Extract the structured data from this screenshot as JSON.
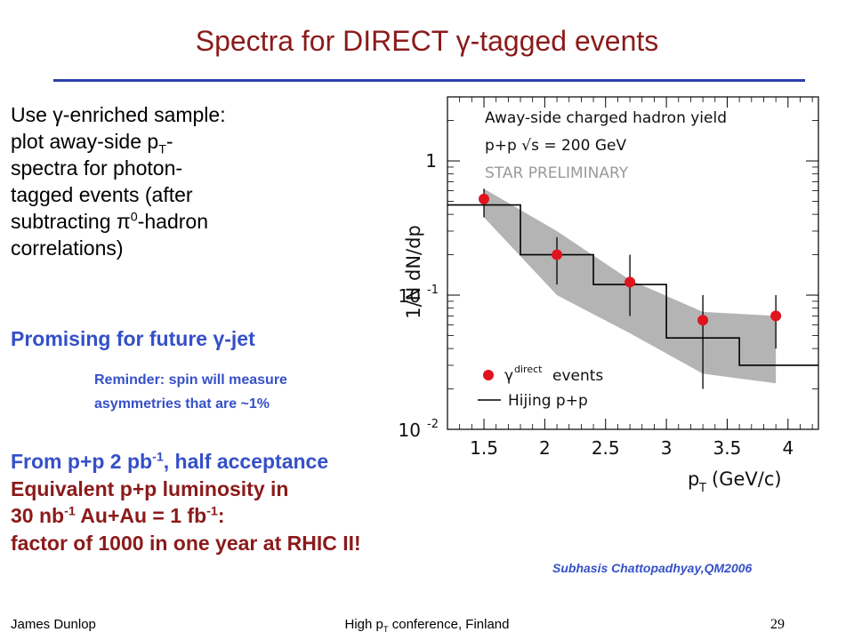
{
  "slide": {
    "title": "Spectra for DIRECT γ-tagged events",
    "intro": {
      "line1": "Use γ-enriched sample:",
      "line2a": "plot away-side p",
      "line2sub": "T",
      "line2b": "-",
      "line3": "spectra for photon-",
      "line4": "tagged events (after",
      "line5a": "subtracting π",
      "line5sup": "0",
      "line5b": "-hadron",
      "line6": "correlations)"
    },
    "promising": "Promising for future γ-jet",
    "reminder_line1": "Reminder: spin will measure",
    "reminder_line2": "asymmetries that are ~1%",
    "lumi": {
      "l1a": "From p+p 2 pb",
      "l1sup": "-1",
      "l1b": ", half acceptance",
      "l2": "Equivalent p+p luminosity in",
      "l3a": "30 nb",
      "l3sup1": "-1",
      "l3b": " Au+Au = 1 fb",
      "l3sup2": "-1",
      "l3c": ":",
      "l4": "factor of 1000 in one year at RHIC II!"
    },
    "credit": "Subhasis Chattopadhyay,QM2006",
    "footer": {
      "author": "James Dunlop",
      "conf_a": "High p",
      "conf_sub": "T",
      "conf_b": " conference, Finland",
      "page": "29"
    }
  },
  "chart_data": {
    "type": "scatter",
    "title": "Away-side charged hadron yield",
    "subtitle": "p+p √s = 200 GeV",
    "watermark": "STAR PRELIMINARY",
    "xlabel": "p_T (GeV/c)",
    "ylabel": "1/N^trig dN/dp_T",
    "xlim": [
      1.2,
      4.25
    ],
    "ylim": [
      0.01,
      3
    ],
    "yscale": "log",
    "x_ticks": [
      "1.5",
      "2",
      "2.5",
      "3",
      "3.5",
      "4"
    ],
    "x_tick_values": [
      1.5,
      2,
      2.5,
      3,
      3.5,
      4
    ],
    "y_ticks": [
      "1",
      "10^-1",
      "10^-2"
    ],
    "y_tick_values": [
      1,
      0.1,
      0.01
    ],
    "series": [
      {
        "name": "γ^direct events",
        "kind": "points",
        "color": "#e0141e",
        "x": [
          1.5,
          2.1,
          2.7,
          3.3,
          3.9
        ],
        "y": [
          0.52,
          0.2,
          0.125,
          0.065,
          0.07
        ],
        "err_low": [
          0.38,
          0.12,
          0.07,
          0.02,
          0.04
        ],
        "err_high": [
          0.62,
          0.27,
          0.2,
          0.1,
          0.1
        ]
      },
      {
        "name": "Hijing p+p",
        "kind": "step",
        "color": "#000000",
        "bin_edges": [
          1.2,
          1.8,
          2.4,
          3.0,
          3.6,
          4.25
        ],
        "values": [
          0.47,
          0.2,
          0.12,
          0.048,
          0.03
        ]
      },
      {
        "name": "systematic band",
        "kind": "band",
        "color": "#b4b4b4",
        "x": [
          1.5,
          2.1,
          2.7,
          3.3,
          3.9
        ],
        "low": [
          0.38,
          0.1,
          0.052,
          0.026,
          0.022
        ],
        "high": [
          0.62,
          0.3,
          0.13,
          0.075,
          0.07
        ]
      }
    ]
  }
}
